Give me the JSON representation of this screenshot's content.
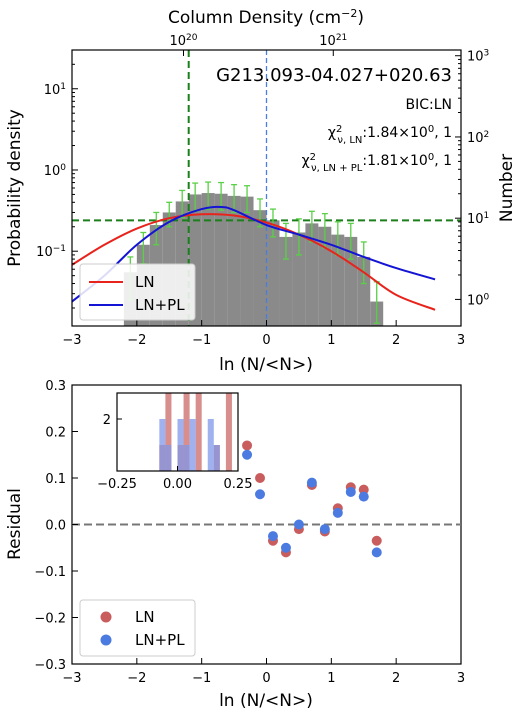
{
  "chart_data": [
    {
      "type": "bar",
      "title": "G213.093-04.027+020.63",
      "top_axis_label": "Column Density (cm$^{-2}$)",
      "top_ticks": [
        {
          "label": "10^20",
          "base": "10",
          "exp": "20",
          "x": -1.28
        },
        {
          "label": "10^21",
          "base": "10",
          "exp": "21",
          "x": 1.03
        }
      ],
      "xlabel": "ln (N/<N>)",
      "ylabel_left": "Probability density",
      "ylabel_right": "Number",
      "xlim": [
        -3,
        3
      ],
      "ylim": [
        0.012,
        30
      ],
      "yscale": "log",
      "xticks": [
        -3,
        -2,
        -1,
        0,
        1,
        2,
        3
      ],
      "xtick_labels": [
        "−3",
        "−2",
        "−1",
        "0",
        "1",
        "2",
        "3"
      ],
      "yticks_left": [
        {
          "value": 0.1,
          "base": "10",
          "exp": "−1"
        },
        {
          "value": 1,
          "base": "10",
          "exp": "0"
        },
        {
          "value": 10,
          "base": "10",
          "exp": "1"
        }
      ],
      "yticks_right": [
        {
          "value": 1,
          "base": "10",
          "exp": "0"
        },
        {
          "value": 10,
          "base": "10",
          "exp": "1"
        },
        {
          "value": 100,
          "base": "10",
          "exp": "2"
        },
        {
          "value": 1000,
          "base": "10",
          "exp": "3"
        }
      ],
      "annotations": {
        "bic": "BIC:LN",
        "chi_ln_value": ":1.84×10",
        "chi_ln_exp": "0",
        "chi_ln_tail": ", 1",
        "chi_pl_value": ":1.81×10",
        "chi_pl_exp": "0",
        "chi_pl_tail": ", 1",
        "chi_ln_sub": "ν, LN",
        "chi_pl_sub": "ν, LN + PL"
      },
      "histogram": {
        "bin_width": 0.2,
        "bins": [
          {
            "x": -2.2,
            "v": 0.055,
            "err": 0.03
          },
          {
            "x": -2.0,
            "v": 0.12,
            "err": 0.05
          },
          {
            "x": -1.8,
            "v": 0.21,
            "err": 0.09
          },
          {
            "x": -1.6,
            "v": 0.3,
            "err": 0.1
          },
          {
            "x": -1.4,
            "v": 0.41,
            "err": 0.15
          },
          {
            "x": -1.2,
            "v": 0.5,
            "err": 0.19
          },
          {
            "x": -1.0,
            "v": 0.52,
            "err": 0.19
          },
          {
            "x": -0.8,
            "v": 0.51,
            "err": 0.19
          },
          {
            "x": -0.6,
            "v": 0.48,
            "err": 0.18
          },
          {
            "x": -0.4,
            "v": 0.47,
            "err": 0.17
          },
          {
            "x": -0.2,
            "v": 0.32,
            "err": 0.12
          },
          {
            "x": 0.0,
            "v": 0.24,
            "err": 0.09
          },
          {
            "x": 0.2,
            "v": 0.15,
            "err": 0.07
          },
          {
            "x": 0.4,
            "v": 0.17,
            "err": 0.08
          },
          {
            "x": 0.6,
            "v": 0.22,
            "err": 0.09
          },
          {
            "x": 0.8,
            "v": 0.2,
            "err": 0.09
          },
          {
            "x": 1.0,
            "v": 0.16,
            "err": 0.07
          },
          {
            "x": 1.2,
            "v": 0.15,
            "err": 0.07
          },
          {
            "x": 1.4,
            "v": 0.085,
            "err": 0.045
          },
          {
            "x": 1.6,
            "v": 0.024,
            "err": 0.018
          }
        ]
      },
      "reference_lines": {
        "horizontal_y": 0.24,
        "vertical_green_x": -1.2,
        "vertical_blue_x": 0.0
      },
      "series": [
        {
          "name": "LN",
          "color": "#e8231c",
          "x": [
            -3.0,
            -2.5,
            -2.0,
            -1.5,
            -1.0,
            -0.5,
            0.0,
            0.5,
            1.0,
            1.5,
            2.0,
            2.6
          ],
          "values": [
            0.068,
            0.12,
            0.19,
            0.255,
            0.285,
            0.275,
            0.225,
            0.16,
            0.1,
            0.055,
            0.029,
            0.019
          ]
        },
        {
          "name": "LN+PL",
          "color": "#1414d4",
          "x": [
            -3.0,
            -2.5,
            -2.0,
            -1.5,
            -1.0,
            -0.7,
            -0.5,
            0.0,
            0.5,
            1.0,
            1.5,
            2.0,
            2.6
          ],
          "values": [
            0.024,
            0.05,
            0.12,
            0.23,
            0.33,
            0.35,
            0.32,
            0.21,
            0.16,
            0.12,
            0.085,
            0.062,
            0.045
          ]
        }
      ],
      "legend": {
        "entries": [
          "LN",
          "LN+PL"
        ],
        "position": "lower-left"
      },
      "errorbar_color": "#5ad046",
      "bar_color": "#8a8a8a",
      "reference_line_colors": {
        "green": "#1b7f1b",
        "blue": "#4a7de0"
      }
    },
    {
      "type": "scatter",
      "xlabel": "ln (N/<N>)",
      "ylabel": "Residual",
      "xlim": [
        -3,
        3
      ],
      "ylim": [
        -0.3,
        0.3
      ],
      "xticks": [
        -3,
        -2,
        -1,
        0,
        1,
        2,
        3
      ],
      "xtick_labels": [
        "−3",
        "−2",
        "−1",
        "0",
        "1",
        "2",
        "3"
      ],
      "yticks": [
        -0.3,
        -0.2,
        -0.1,
        0.0,
        0.1,
        0.2,
        0.3
      ],
      "ytick_labels": [
        "−0.3",
        "−0.2",
        "−0.1",
        "0.0",
        "0.1",
        "0.2",
        "0.3"
      ],
      "zero_line": 0.0,
      "series": [
        {
          "name": "LN",
          "color": "#c95d5d",
          "x": [
            -0.3,
            -0.1,
            0.1,
            0.3,
            0.5,
            0.7,
            0.9,
            1.1,
            1.3,
            1.5,
            1.7
          ],
          "values": [
            0.17,
            0.1,
            -0.035,
            -0.06,
            -0.01,
            0.085,
            -0.015,
            0.035,
            0.08,
            0.075,
            -0.035
          ]
        },
        {
          "name": "LN+PL",
          "color": "#4b7be0",
          "x": [
            -0.3,
            -0.1,
            0.1,
            0.3,
            0.5,
            0.7,
            0.9,
            1.1,
            1.3,
            1.5,
            1.7
          ],
          "values": [
            0.15,
            0.065,
            -0.025,
            -0.05,
            0.0,
            0.09,
            -0.01,
            0.025,
            0.07,
            0.06,
            -0.06
          ]
        }
      ],
      "legend": {
        "entries": [
          "LN",
          "LN+PL"
        ],
        "position": "lower-left"
      },
      "inset": {
        "type": "histogram",
        "xlim": [
          -0.25,
          0.25
        ],
        "ylim": [
          0,
          3
        ],
        "xticks": [
          -0.25,
          0.0,
          0.25
        ],
        "xtick_labels": [
          "−0.25",
          "0.00",
          "0.25"
        ],
        "yticks": [
          2
        ],
        "ytick_labels": [
          "2"
        ],
        "bin_width": 0.025,
        "series": [
          {
            "name": "LN",
            "color": "#d27a7a",
            "bins_x": [
              -0.0625,
              -0.0375,
              0.0125,
              0.0375,
              0.0875,
              0.1625,
              0.2125
            ],
            "counts": [
              1,
              3,
              1,
              3,
              3,
              1,
              3
            ]
          },
          {
            "name": "LN+PL",
            "color": "#7f97e8",
            "bins_x": [
              -0.0625,
              -0.0375,
              0.0125,
              0.0375,
              0.0625,
              0.1375,
              0.1625
            ],
            "counts": [
              2,
              1,
              2,
              1,
              2,
              2,
              1
            ]
          }
        ]
      }
    }
  ]
}
